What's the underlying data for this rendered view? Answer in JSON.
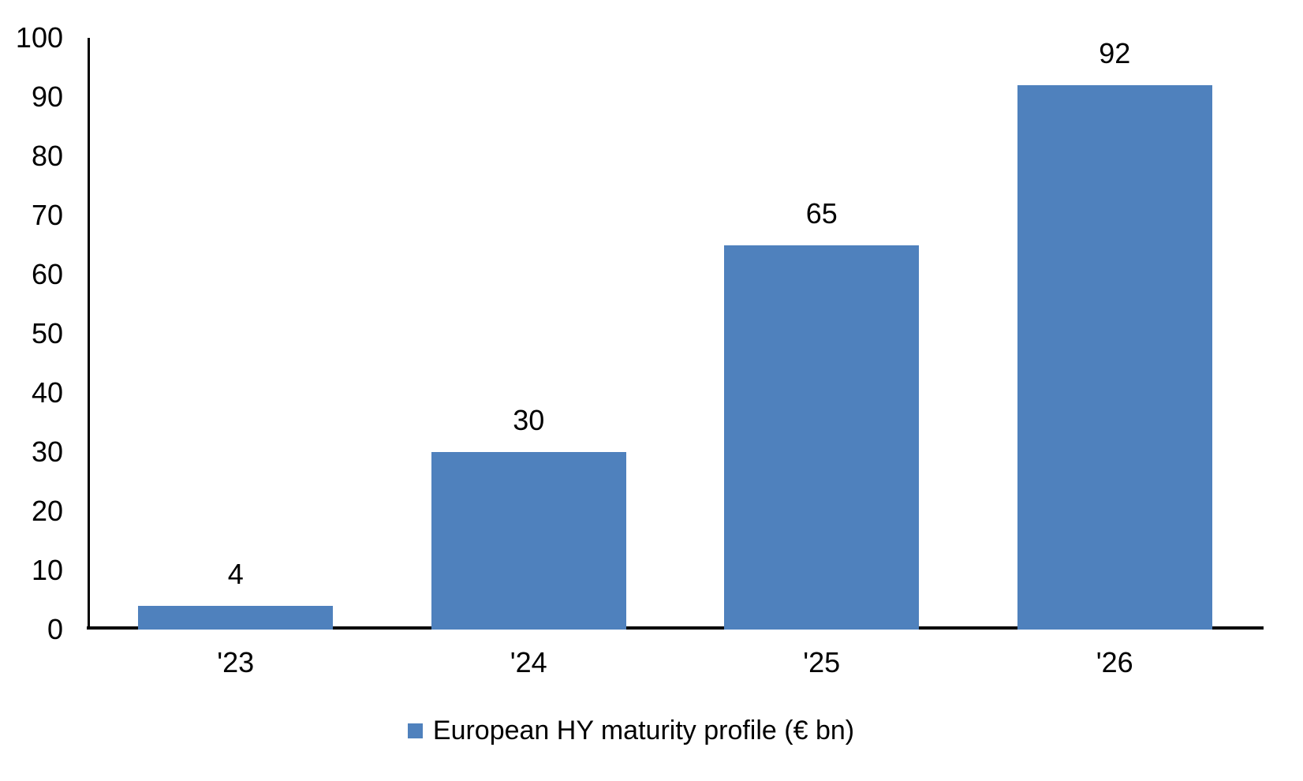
{
  "chart_data": {
    "type": "bar",
    "categories": [
      "'23",
      "'24",
      "'25",
      "'26"
    ],
    "values": [
      4,
      30,
      65,
      92
    ],
    "data_labels": [
      "4",
      "30",
      "65",
      "92"
    ],
    "series": [
      {
        "name": "European HY maturity profile (€ bn)",
        "values": [
          4,
          30,
          65,
          92
        ]
      }
    ],
    "title": "",
    "xlabel": "",
    "ylabel": "",
    "ylim": [
      0,
      100
    ],
    "y_ticks": [
      0,
      10,
      20,
      30,
      40,
      50,
      60,
      70,
      80,
      90,
      100
    ],
    "grid": false,
    "legend_position": "bottom-center",
    "bar_color": "#4F81BD",
    "axis_color": "#000000",
    "text_color": "#000000",
    "background_color": "#FFFFFF"
  },
  "legend": {
    "label": "European HY maturity profile (€ bn)",
    "swatch_color": "#4F81BD"
  }
}
